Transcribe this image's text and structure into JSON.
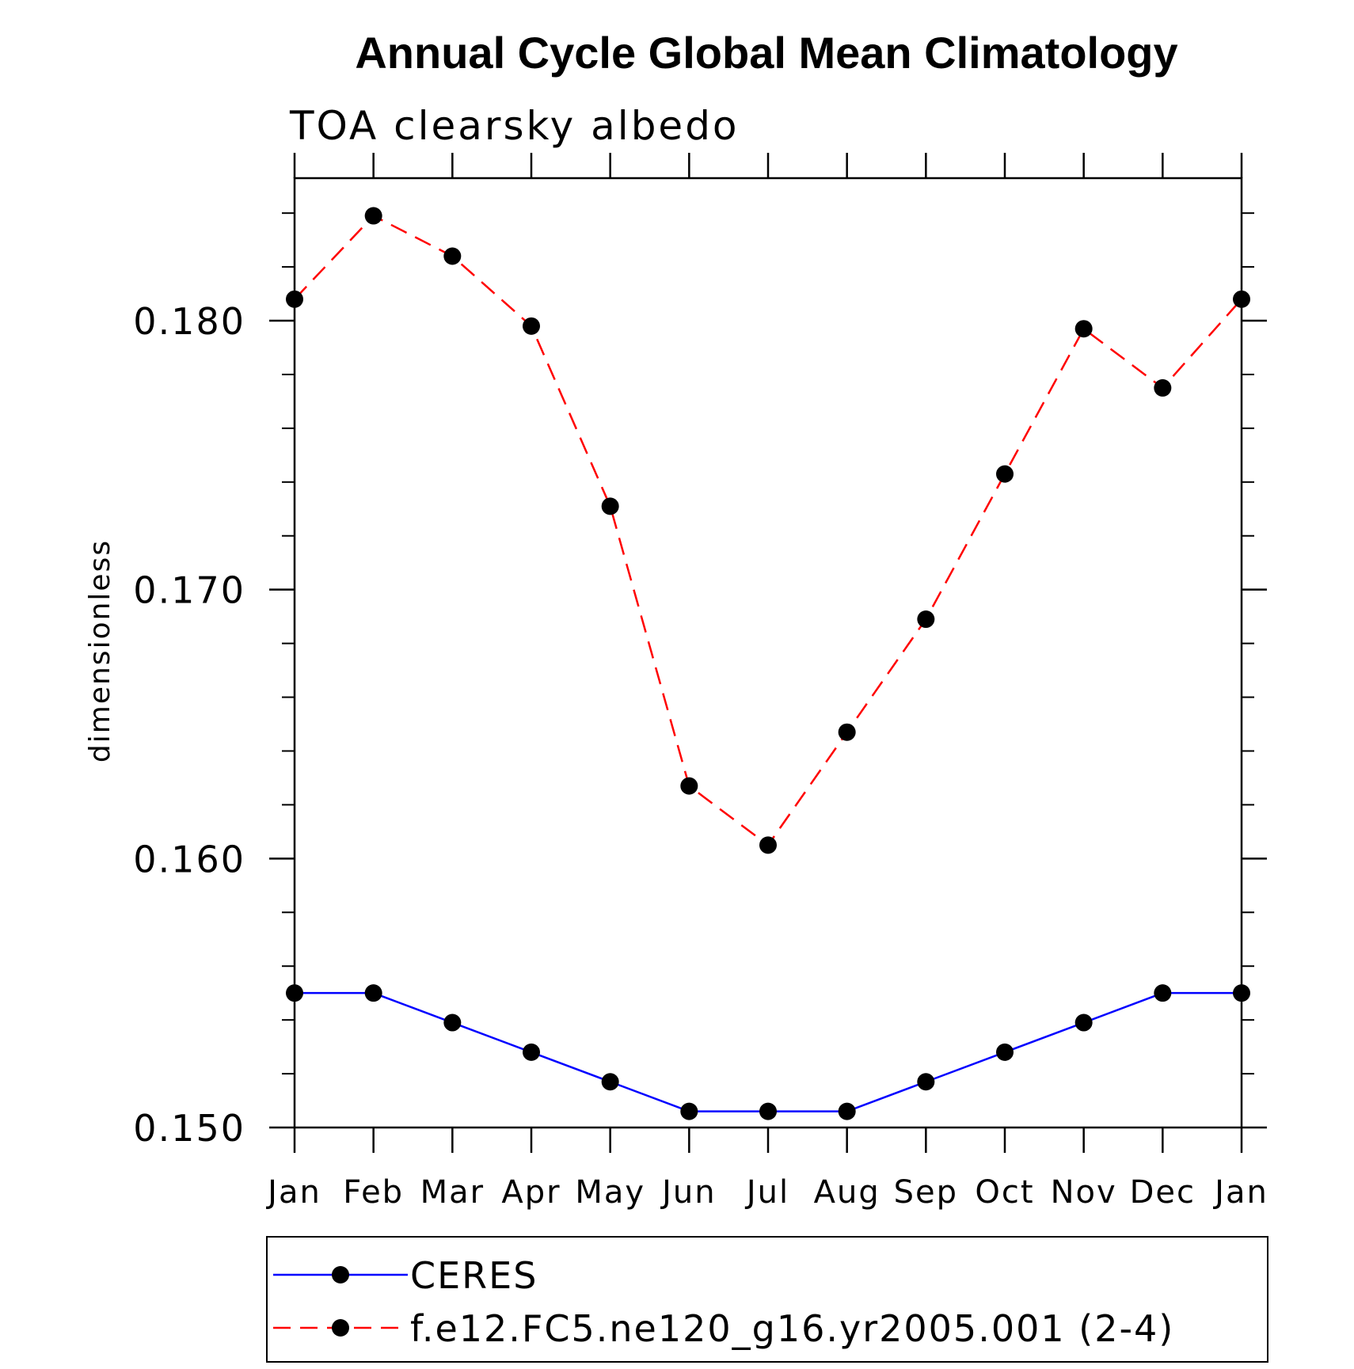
{
  "chart_data": {
    "type": "line",
    "title": "Annual Cycle Global Mean Climatology",
    "subtitle": "TOA clearsky albedo",
    "ylabel": "dimensionless",
    "xlabel": "",
    "categories": [
      "Jan",
      "Feb",
      "Mar",
      "Apr",
      "May",
      "Jun",
      "Jul",
      "Aug",
      "Sep",
      "Oct",
      "Nov",
      "Dec",
      "Jan"
    ],
    "ylim": [
      0.15,
      0.1853
    ],
    "yticks": [
      0.15,
      0.16,
      0.17,
      0.18
    ],
    "ytick_labels": [
      "0.150",
      "0.160",
      "0.170",
      "0.180"
    ],
    "y_minor_step": 0.002,
    "grid": false,
    "legend_position": "bottom",
    "series": [
      {
        "name": "CERES",
        "color": "#0000ff",
        "dash": "solid",
        "marker": "filled-circle",
        "values": [
          0.155,
          0.155,
          0.1539,
          0.1528,
          0.1517,
          0.1506,
          0.1506,
          0.1506,
          0.1517,
          0.1528,
          0.1539,
          0.155,
          0.155
        ]
      },
      {
        "name": "f.e12.FC5.ne120_g16.yr2005.001 (2-4)",
        "color": "#ff0000",
        "dash": "dashed",
        "marker": "filled-circle",
        "values": [
          0.1808,
          0.1839,
          0.1824,
          0.1798,
          0.1731,
          0.1627,
          0.1605,
          0.1647,
          0.1689,
          0.1743,
          0.1797,
          0.1775,
          0.1808
        ]
      }
    ]
  }
}
